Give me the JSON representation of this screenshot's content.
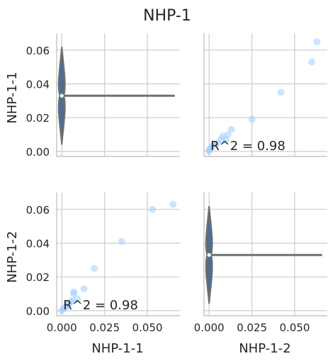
{
  "title": "NHP-1",
  "colors": {
    "point": "#99ccff",
    "violin_fill": "#4f6d8f",
    "violin_line": "#707070",
    "grid": "#cccccc",
    "axis": "#bbbbbb",
    "text": "#262626"
  },
  "chart_data": {
    "type": "scatter",
    "layout": "pairplot 2x2 (off-diagonal scatter, diagonal horizontal violin)",
    "variables": [
      "NHP-1-1",
      "NHP-1-2"
    ],
    "xlim": [
      -0.003,
      0.069
    ],
    "ylim": [
      -0.003,
      0.07
    ],
    "xticks": [
      "0.000",
      "0.025",
      "0.050"
    ],
    "yticks": [
      "0.00",
      "0.02",
      "0.04",
      "0.06"
    ],
    "grid": true,
    "ylabels": [
      "NHP-1-1",
      "NHP-1-2"
    ],
    "xlabels": [
      "NHP-1-1",
      "NHP-1-2"
    ],
    "annotation": "R^2 = 0.98",
    "scatter_top_right": {
      "x_var": "NHP-1-2",
      "y_var": "NHP-1-1",
      "x": [
        0.0,
        0.0,
        0.001,
        0.002,
        0.003,
        0.005,
        0.007,
        0.008,
        0.01,
        0.011,
        0.013,
        0.025,
        0.042,
        0.06,
        0.063
      ],
      "y": [
        0.0,
        0.001,
        0.002,
        0.003,
        0.004,
        0.005,
        0.007,
        0.009,
        0.007,
        0.01,
        0.013,
        0.019,
        0.035,
        0.053,
        0.065
      ]
    },
    "scatter_bottom_left": {
      "x_var": "NHP-1-1",
      "y_var": "NHP-1-2",
      "x": [
        0.0,
        0.001,
        0.002,
        0.003,
        0.004,
        0.005,
        0.006,
        0.007,
        0.007,
        0.009,
        0.013,
        0.019,
        0.035,
        0.053,
        0.065
      ],
      "y": [
        0.0,
        0.001,
        0.002,
        0.003,
        0.004,
        0.005,
        0.006,
        0.01,
        0.011,
        0.007,
        0.013,
        0.025,
        0.041,
        0.06,
        0.063
      ]
    },
    "violin": {
      "center": 0.033,
      "y_min": 0.004,
      "y_max": 0.062,
      "x_extent": [
        0.0,
        0.066
      ]
    }
  }
}
